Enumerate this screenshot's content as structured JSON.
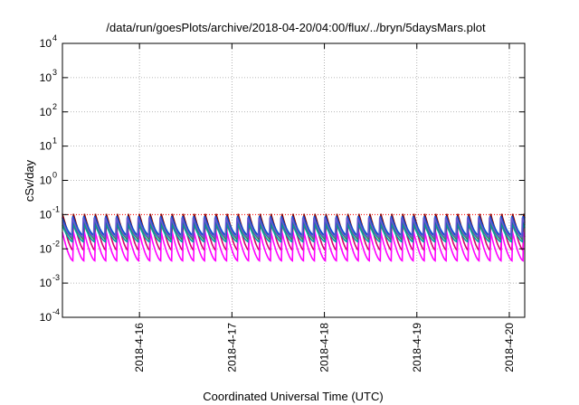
{
  "chart_data": {
    "type": "line",
    "title": "/data/run/goesPlots/archive/2018-04-20/04:00/flux/../bryn/5daysMars.plot",
    "xlabel": "Coordinated Universal Time (UTC)",
    "ylabel": "cSv/day",
    "yscale": "log",
    "ylim": [
      0.0001,
      10000
    ],
    "y_ticks": [
      {
        "base": "10",
        "exp": "-4",
        "value": 0.0001
      },
      {
        "base": "10",
        "exp": "-3",
        "value": 0.001
      },
      {
        "base": "10",
        "exp": "-2",
        "value": 0.01
      },
      {
        "base": "10",
        "exp": "-1",
        "value": 0.1
      },
      {
        "base": "10",
        "exp": "0",
        "value": 1
      },
      {
        "base": "10",
        "exp": "1",
        "value": 10
      },
      {
        "base": "10",
        "exp": "2",
        "value": 100
      },
      {
        "base": "10",
        "exp": "3",
        "value": 1000
      },
      {
        "base": "10",
        "exp": "4",
        "value": 10000
      }
    ],
    "xlim": [
      "2018-04-15 04:00",
      "2018-04-20 04:00"
    ],
    "x_ticks": [
      "2018-4-16",
      "2018-4-17",
      "2018-4-18",
      "2018-4-19",
      "2018-4-20"
    ],
    "grid": true,
    "legend": "none",
    "reference_line": {
      "value": 0.1,
      "color": "#ff0000",
      "style": "dotted"
    },
    "sawtooth_period_hours": 2.85,
    "series": [
      {
        "color": "#8b0000",
        "peak": 0.105,
        "trough": 0.018
      },
      {
        "color": "#d4006e",
        "peak": 0.09,
        "trough": 0.009
      },
      {
        "color": "#ff00ff",
        "peak": 0.035,
        "trough": 0.0045
      },
      {
        "color": "#00a0a0",
        "peak": 0.055,
        "trough": 0.016
      },
      {
        "color": "#2e8b57",
        "peak": 0.07,
        "trough": 0.02
      },
      {
        "color": "#0050d0",
        "peak": 0.1,
        "trough": 0.025
      },
      {
        "color": "#6a5acd",
        "peak": 0.085,
        "trough": 0.022
      }
    ]
  }
}
